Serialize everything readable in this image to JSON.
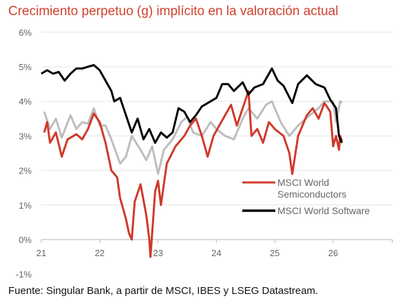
{
  "chart_data": {
    "type": "line",
    "title": "Crecimiento perpetuo (g) implícito en la valoración actual",
    "source": "Fuente: Singular Bank, a partir de MSCI, IBES y LSEG Datastream.",
    "xlabel": "",
    "ylabel": "",
    "xlim": [
      21,
      27
    ],
    "ylim": [
      -1,
      6
    ],
    "x_ticks": [
      "21",
      "22",
      "23",
      "24",
      "25",
      "26"
    ],
    "y_ticks": [
      "-1%",
      "0%",
      "1%",
      "2%",
      "3%",
      "4%",
      "5%",
      "6%"
    ],
    "grid": true,
    "legend_placement": "lower-right",
    "series": [
      {
        "name": "",
        "color": "#bdbdbd",
        "x": [
          21.05,
          21.15,
          21.25,
          21.35,
          21.5,
          21.6,
          21.7,
          21.8,
          21.9,
          22.0,
          22.1,
          22.2,
          22.35,
          22.45,
          22.55,
          22.7,
          22.8,
          22.9,
          23.0,
          23.1,
          23.25,
          23.4,
          23.5,
          23.6,
          23.75,
          23.9,
          24.0,
          24.15,
          24.3,
          24.45,
          24.55,
          24.7,
          24.85,
          24.95,
          25.1,
          25.25,
          25.4,
          25.6,
          25.75,
          25.85,
          26.0,
          26.05,
          26.12,
          26.15
        ],
        "y": [
          3.7,
          3.2,
          3.5,
          2.95,
          3.6,
          3.2,
          3.4,
          3.35,
          3.8,
          3.3,
          3.3,
          2.9,
          2.2,
          2.4,
          3.0,
          2.6,
          2.3,
          2.7,
          1.9,
          2.6,
          2.9,
          3.4,
          3.55,
          3.1,
          3.0,
          3.4,
          3.2,
          3.0,
          2.9,
          3.5,
          3.8,
          3.5,
          3.9,
          4.0,
          3.4,
          3.0,
          3.3,
          3.6,
          3.8,
          4.0,
          4.0,
          3.4,
          4.0,
          3.95
        ]
      },
      {
        "name": "MSCI World Semiconductors",
        "color": "#d0392b",
        "x": [
          21.05,
          21.1,
          21.15,
          21.25,
          21.35,
          21.45,
          21.6,
          21.7,
          21.8,
          21.9,
          22.0,
          22.1,
          22.2,
          22.3,
          22.35,
          22.45,
          22.5,
          22.55,
          22.6,
          22.7,
          22.8,
          22.85,
          22.87,
          22.95,
          23.0,
          23.05,
          23.15,
          23.3,
          23.45,
          23.55,
          23.65,
          23.75,
          23.85,
          23.95,
          24.05,
          24.15,
          24.25,
          24.35,
          24.45,
          24.55,
          24.6,
          24.7,
          24.8,
          24.9,
          25.0,
          25.15,
          25.25,
          25.3,
          25.4,
          25.55,
          25.65,
          25.75,
          25.85,
          25.95,
          26.0,
          26.05,
          26.1,
          26.12,
          26.15
        ],
        "y": [
          3.1,
          3.4,
          2.8,
          3.1,
          2.4,
          2.9,
          3.05,
          2.9,
          3.2,
          3.65,
          3.4,
          2.8,
          2.0,
          1.8,
          1.2,
          0.6,
          0.2,
          0.0,
          1.1,
          1.6,
          0.7,
          0.0,
          -0.5,
          1.4,
          1.7,
          1.0,
          2.2,
          2.7,
          3.0,
          3.3,
          3.5,
          3.0,
          2.4,
          3.0,
          3.3,
          3.6,
          3.9,
          3.3,
          3.8,
          4.3,
          3.0,
          3.2,
          2.8,
          3.4,
          3.2,
          3.0,
          2.5,
          1.9,
          3.0,
          3.6,
          3.8,
          3.5,
          3.95,
          3.7,
          2.7,
          3.0,
          2.6,
          3.0,
          2.85
        ]
      },
      {
        "name": "MSCI World Software",
        "color": "#000000",
        "x": [
          21.0,
          21.1,
          21.2,
          21.3,
          21.4,
          21.5,
          21.6,
          21.7,
          21.8,
          21.9,
          22.0,
          22.1,
          22.2,
          22.25,
          22.35,
          22.45,
          22.55,
          22.65,
          22.75,
          22.85,
          22.95,
          23.05,
          23.15,
          23.25,
          23.35,
          23.45,
          23.55,
          23.65,
          23.75,
          23.85,
          24.0,
          24.1,
          24.2,
          24.3,
          24.45,
          24.55,
          24.65,
          24.8,
          24.95,
          25.05,
          25.15,
          25.3,
          25.4,
          25.55,
          25.7,
          25.85,
          25.95,
          26.05,
          26.1,
          26.15
        ],
        "y": [
          4.8,
          4.9,
          4.8,
          4.85,
          4.6,
          4.8,
          4.95,
          4.95,
          5.0,
          5.05,
          4.9,
          4.6,
          4.3,
          4.0,
          4.1,
          3.6,
          3.1,
          3.5,
          2.9,
          3.2,
          2.8,
          3.1,
          2.95,
          3.1,
          3.8,
          3.7,
          3.4,
          3.6,
          3.85,
          3.95,
          4.1,
          4.5,
          4.5,
          4.3,
          4.55,
          4.2,
          4.4,
          4.5,
          4.95,
          4.6,
          4.45,
          3.95,
          4.5,
          4.75,
          4.5,
          4.4,
          4.05,
          3.8,
          3.0,
          2.8
        ]
      }
    ]
  }
}
